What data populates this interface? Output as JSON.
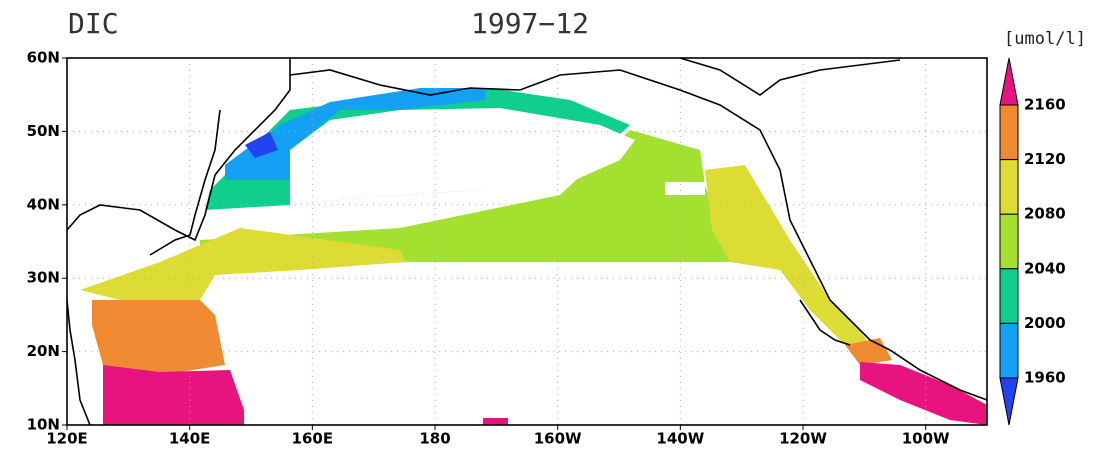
{
  "title": "DIC",
  "subtitle": "1997−12",
  "lat_labels": [
    "60N",
    "50N",
    "40N",
    "30N",
    "20N",
    "10N"
  ],
  "lon_labels": [
    "120E",
    "140E",
    "160E",
    "180",
    "160W",
    "140W",
    "120W",
    "100W"
  ],
  "legend": {
    "unit": "[umol/l]",
    "levels": [
      2160,
      2120,
      2080,
      2040,
      2000,
      1960
    ],
    "colors": [
      "#e8137e",
      "#ef8a33",
      "#dddc35",
      "#a3e02f",
      "#10cf8c",
      "#14a0f5",
      "#2243f0"
    ]
  }
}
